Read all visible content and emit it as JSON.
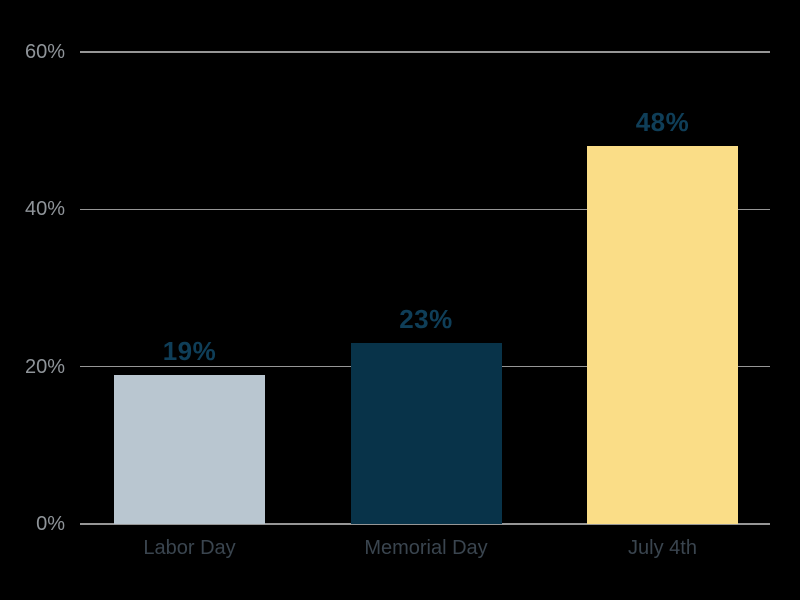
{
  "chart_data": {
    "type": "bar",
    "categories": [
      "Labor Day",
      "Memorial Day",
      "July 4th"
    ],
    "values": [
      19,
      23,
      48
    ],
    "value_labels": [
      "19%",
      "23%",
      "48%"
    ],
    "bar_colors": [
      "#b9c6d0",
      "#083349",
      "#fadd87"
    ],
    "yticks": [
      {
        "value": 0,
        "label": "0%"
      },
      {
        "value": 20,
        "label": "20%"
      },
      {
        "value": 40,
        "label": "40%"
      },
      {
        "value": 60,
        "label": "60%"
      }
    ],
    "ylim": [
      0,
      60
    ],
    "title": "",
    "xlabel": "",
    "ylabel": "",
    "grid": "horizontal",
    "legend": "none"
  },
  "colors": {
    "background": "#000000",
    "gridline": "#969696",
    "ytick_label": "#8f9499",
    "xtick_label": "#3a454f",
    "value_label": "#0f3e58"
  }
}
